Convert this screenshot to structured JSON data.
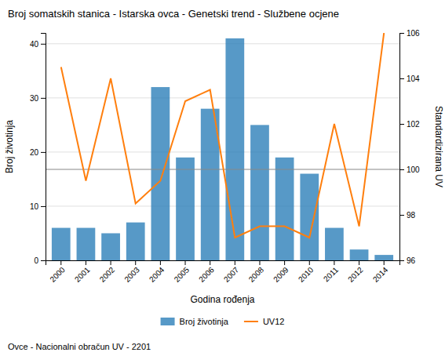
{
  "chart_data": {
    "type": "bar",
    "title": "Broj somatskih stanica - Istarska ovca - Genetski trend - Službene ocjene",
    "xlabel": "Godina rođenja",
    "ylabel": "Broj životinja",
    "y2label": "Standardizirana UV",
    "annotations": [
      "Ovce - Nacionalni obračun UV - 2201"
    ],
    "categories": [
      "2000",
      "2001",
      "2002",
      "2003",
      "2004",
      "2005",
      "2006",
      "2007",
      "2008",
      "2009",
      "2010",
      "2011",
      "2012",
      "2014"
    ],
    "series": [
      {
        "name": "Broj životinja",
        "type": "bar",
        "values": [
          6,
          6,
          5,
          7,
          32,
          19,
          28,
          41,
          25,
          19,
          16,
          6,
          2,
          1
        ]
      },
      {
        "name": "UV12",
        "type": "line",
        "axis": "y2",
        "values": [
          104.5,
          99.5,
          104.0,
          98.5,
          99.5,
          103.0,
          103.5,
          97.0,
          97.5,
          97.5,
          97.0,
          102.0,
          97.5,
          106.0
        ]
      }
    ],
    "reference_line": 100,
    "ylim": [
      0,
      42
    ],
    "yticks": [
      0,
      10,
      20,
      30,
      40
    ],
    "y2lim": [
      96,
      106
    ],
    "y2ticks": [
      96,
      98,
      100,
      102,
      104,
      106
    ],
    "grid": true,
    "legend": "bottom"
  }
}
